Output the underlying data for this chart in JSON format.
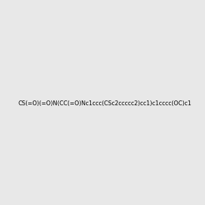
{
  "smiles": "CS(=O)(=O)N(CC(=O)Nc1ccc(CSc2ccccc2)cc1)c1cccc(OC)c1",
  "image_size": 300,
  "background_color": "#e8e8e8",
  "title": ""
}
